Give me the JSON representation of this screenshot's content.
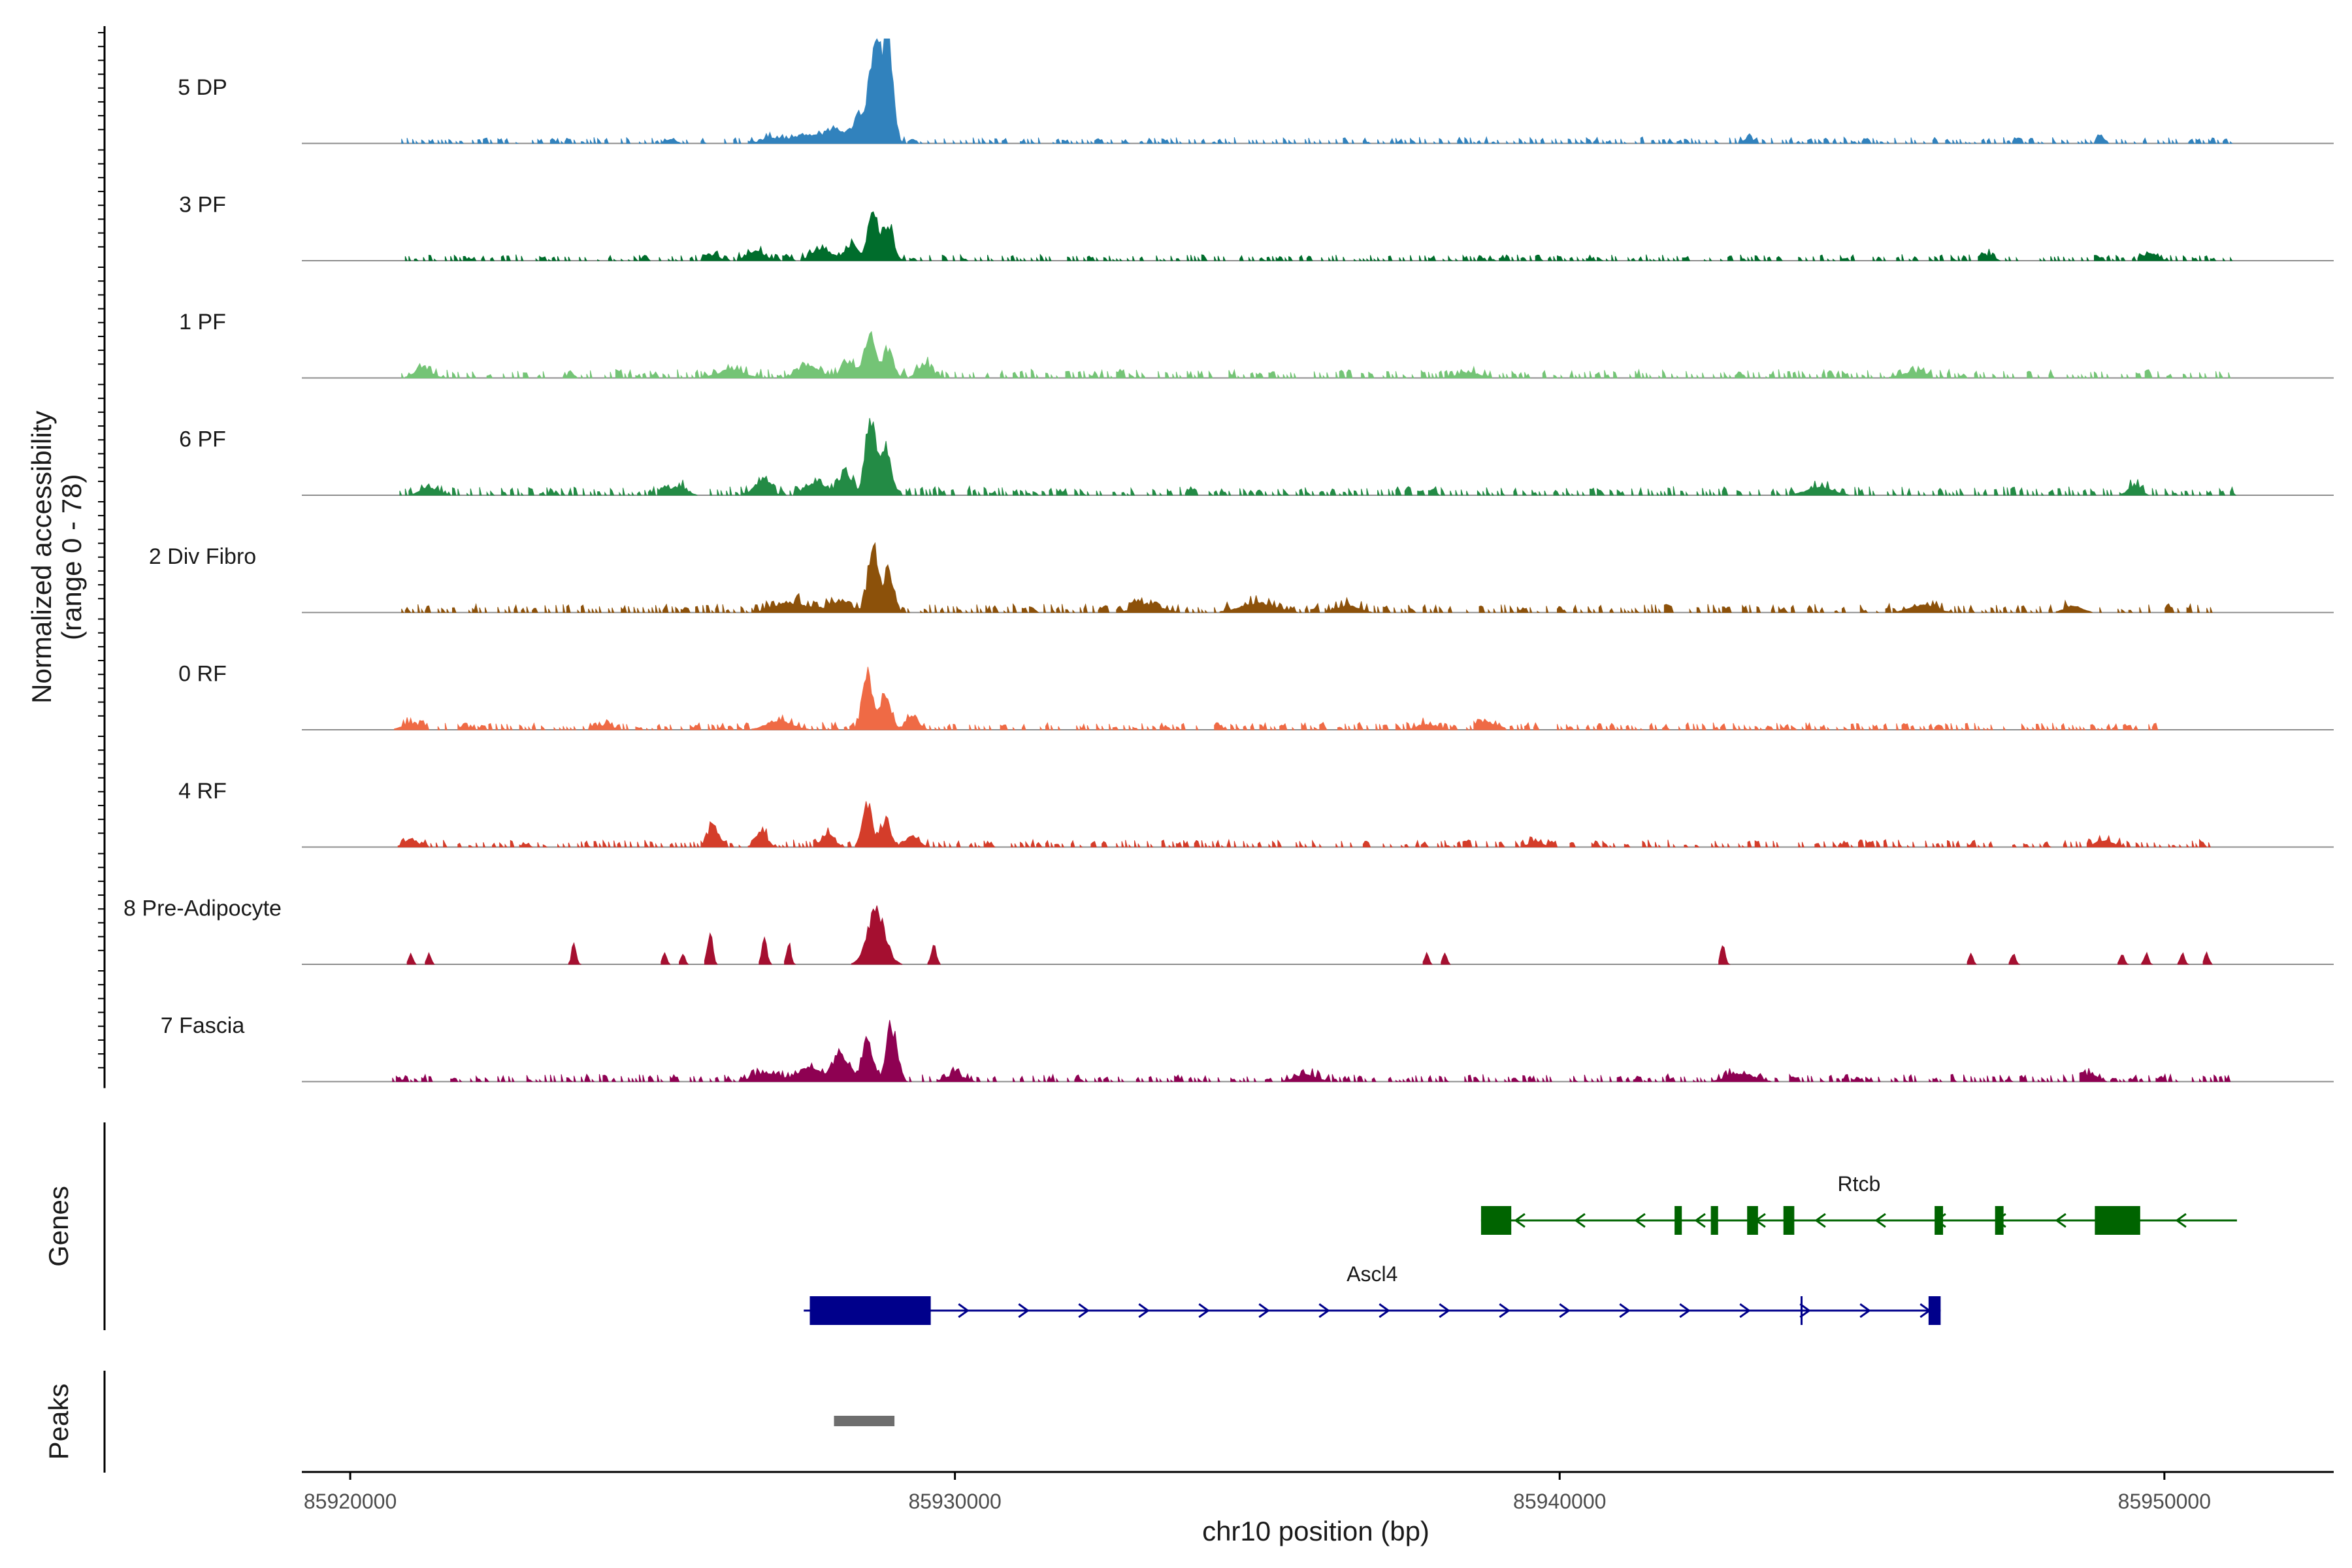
{
  "chart_data": {
    "type": "area",
    "title": "",
    "ylabel": "Normalized accessibility\n(range 0 - 78)",
    "ylabel_lines": [
      "Normalized accessibility",
      "(range 0 - 78)"
    ],
    "xlabel": "chr10 position (bp)",
    "y_range": [
      0,
      78
    ],
    "xlim": [
      85919200,
      85952800
    ],
    "x_ticks": [
      85920000,
      85930000,
      85940000,
      85950000
    ],
    "x_tick_labels": [
      "85920000",
      "85930000",
      "85940000",
      "85950000"
    ],
    "region_start": 85920700,
    "region_end": 85951200,
    "tracks": [
      {
        "name": "5 DP",
        "color": "#3182bd",
        "peaks": [
          [
            85928700,
            78,
            130
          ],
          [
            85928900,
            70,
            110
          ],
          [
            85928450,
            22,
            160
          ],
          [
            85928050,
            10,
            260
          ],
          [
            85927500,
            6,
            320
          ],
          [
            85926950,
            4,
            200
          ],
          [
            85948950,
            6,
            70
          ],
          [
            85925300,
            3,
            120
          ],
          [
            85943100,
            3,
            120
          ]
        ],
        "bg_start": 85920800,
        "bg_end": 85951100,
        "bg_level": 2.5
      },
      {
        "name": "3 PF",
        "color": "#006d2c",
        "peaks": [
          [
            85928650,
            36,
            110
          ],
          [
            85928900,
            26,
            120
          ],
          [
            85928300,
            12,
            160
          ],
          [
            85927800,
            9,
            220
          ],
          [
            85926700,
            7,
            200
          ],
          [
            85926000,
            4,
            150
          ],
          [
            85949800,
            5,
            140
          ],
          [
            85947100,
            4,
            120
          ]
        ],
        "bg_start": 85920800,
        "bg_end": 85951100,
        "bg_level": 2.5
      },
      {
        "name": "1 PF",
        "color": "#74c476",
        "peaks": [
          [
            85928600,
            36,
            120
          ],
          [
            85928900,
            20,
            120
          ],
          [
            85928250,
            12,
            160
          ],
          [
            85929500,
            10,
            160
          ],
          [
            85927600,
            8,
            250
          ],
          [
            85926300,
            6,
            300
          ],
          [
            85921200,
            6,
            200
          ],
          [
            85945800,
            4,
            250
          ],
          [
            85938500,
            4,
            250
          ]
        ],
        "bg_start": 85920800,
        "bg_end": 85951100,
        "bg_level": 3.5
      },
      {
        "name": "6 PF",
        "color": "#238b45",
        "peaks": [
          [
            85928600,
            56,
            110
          ],
          [
            85928850,
            34,
            130
          ],
          [
            85928200,
            16,
            160
          ],
          [
            85927700,
            10,
            220
          ],
          [
            85926800,
            10,
            180
          ],
          [
            85925400,
            6,
            200
          ],
          [
            85949500,
            6,
            150
          ],
          [
            85944300,
            6,
            300
          ],
          [
            85921300,
            5,
            200
          ]
        ],
        "bg_start": 85920800,
        "bg_end": 85951200,
        "bg_level": 3.5
      },
      {
        "name": "2 Div Fibro",
        "color": "#8c510a",
        "peaks": [
          [
            85928650,
            44,
            120
          ],
          [
            85928900,
            30,
            110
          ],
          [
            85928100,
            8,
            250
          ],
          [
            85927300,
            7,
            400
          ],
          [
            85935000,
            7,
            400
          ],
          [
            85933200,
            6,
            300
          ],
          [
            85946000,
            5,
            300
          ],
          [
            85936500,
            5,
            250
          ],
          [
            85948500,
            5,
            200
          ]
        ],
        "bg_start": 85920800,
        "bg_end": 85950800,
        "bg_level": 3.5
      },
      {
        "name": "0 RF",
        "color": "#ef6a45",
        "peaks": [
          [
            85928550,
            44,
            110
          ],
          [
            85928850,
            24,
            130
          ],
          [
            85929300,
            8,
            150
          ],
          [
            85927100,
            6,
            300
          ],
          [
            85938800,
            6,
            150
          ],
          [
            85937800,
            4,
            200
          ],
          [
            85921000,
            4,
            200
          ],
          [
            85924200,
            3,
            200
          ]
        ],
        "bg_start": 85920800,
        "bg_end": 85950000,
        "bg_level": 3
      },
      {
        "name": "4 RF",
        "color": "#d43d2a",
        "peaks": [
          [
            85928550,
            32,
            110
          ],
          [
            85928850,
            18,
            120
          ],
          [
            85926000,
            16,
            120
          ],
          [
            85926800,
            11,
            130
          ],
          [
            85927900,
            9,
            150
          ],
          [
            85929300,
            8,
            150
          ],
          [
            85921000,
            6,
            150
          ],
          [
            85949000,
            5,
            200
          ],
          [
            85939600,
            4,
            150
          ]
        ],
        "bg_start": 85920800,
        "bg_end": 85950800,
        "bg_level": 3
      },
      {
        "name": "8 Pre-Adipocyte",
        "color": "#a50f30",
        "peaks": [
          [
            85928700,
            40,
            200
          ],
          [
            85925950,
            24,
            60
          ],
          [
            85926850,
            18,
            60
          ],
          [
            85927250,
            16,
            50
          ],
          [
            85923700,
            16,
            50
          ],
          [
            85929650,
            14,
            60
          ],
          [
            85942700,
            16,
            50
          ],
          [
            85925200,
            8,
            50
          ],
          [
            85925500,
            8,
            50
          ],
          [
            85921000,
            8,
            50
          ],
          [
            85921300,
            8,
            50
          ],
          [
            85937800,
            8,
            50
          ],
          [
            85938100,
            8,
            50
          ],
          [
            85946800,
            8,
            50
          ],
          [
            85947500,
            8,
            50
          ],
          [
            85949300,
            8,
            50
          ],
          [
            85949700,
            8,
            50
          ],
          [
            85950300,
            8,
            50
          ],
          [
            85950700,
            8,
            50
          ]
        ],
        "bg_start": 0,
        "bg_end": 0,
        "bg_level": 0
      },
      {
        "name": "7 Fascia",
        "color": "#8e0152",
        "peaks": [
          [
            85928950,
            40,
            120
          ],
          [
            85928550,
            32,
            120
          ],
          [
            85928100,
            20,
            180
          ],
          [
            85927600,
            10,
            250
          ],
          [
            85926900,
            6,
            300
          ],
          [
            85930000,
            5,
            200
          ],
          [
            85943000,
            6,
            300
          ],
          [
            85935800,
            5,
            250
          ],
          [
            85948800,
            5,
            150
          ]
        ],
        "bg_start": 85920700,
        "bg_end": 85951100,
        "bg_level": 3
      }
    ],
    "genes": [
      {
        "name": "Rtcb",
        "color": "#006400",
        "strand": "-",
        "start": 85938700,
        "end": 85951200,
        "exons": [
          [
            85938700,
            85939200,
            "big"
          ],
          [
            85941900,
            85942020,
            "small"
          ],
          [
            85942500,
            85942620,
            "small"
          ],
          [
            85943100,
            85943280,
            "small"
          ],
          [
            85943700,
            85943880,
            "small"
          ],
          [
            85946200,
            85946340,
            "small"
          ],
          [
            85947200,
            85947340,
            "small"
          ],
          [
            85948850,
            85949600,
            "big"
          ]
        ]
      },
      {
        "name": "Ascl4",
        "color": "#00008b",
        "strand": "+",
        "start": 85927500,
        "end": 85946300,
        "exons": [
          [
            85927600,
            85929600,
            "big"
          ],
          [
            85946100,
            85946300,
            "small"
          ]
        ],
        "marks": [
          85944000
        ]
      }
    ],
    "peak_regions": [
      [
        85928000,
        85929000
      ]
    ],
    "panel_titles": {
      "genes": "Genes",
      "peaks": "Peaks"
    }
  }
}
